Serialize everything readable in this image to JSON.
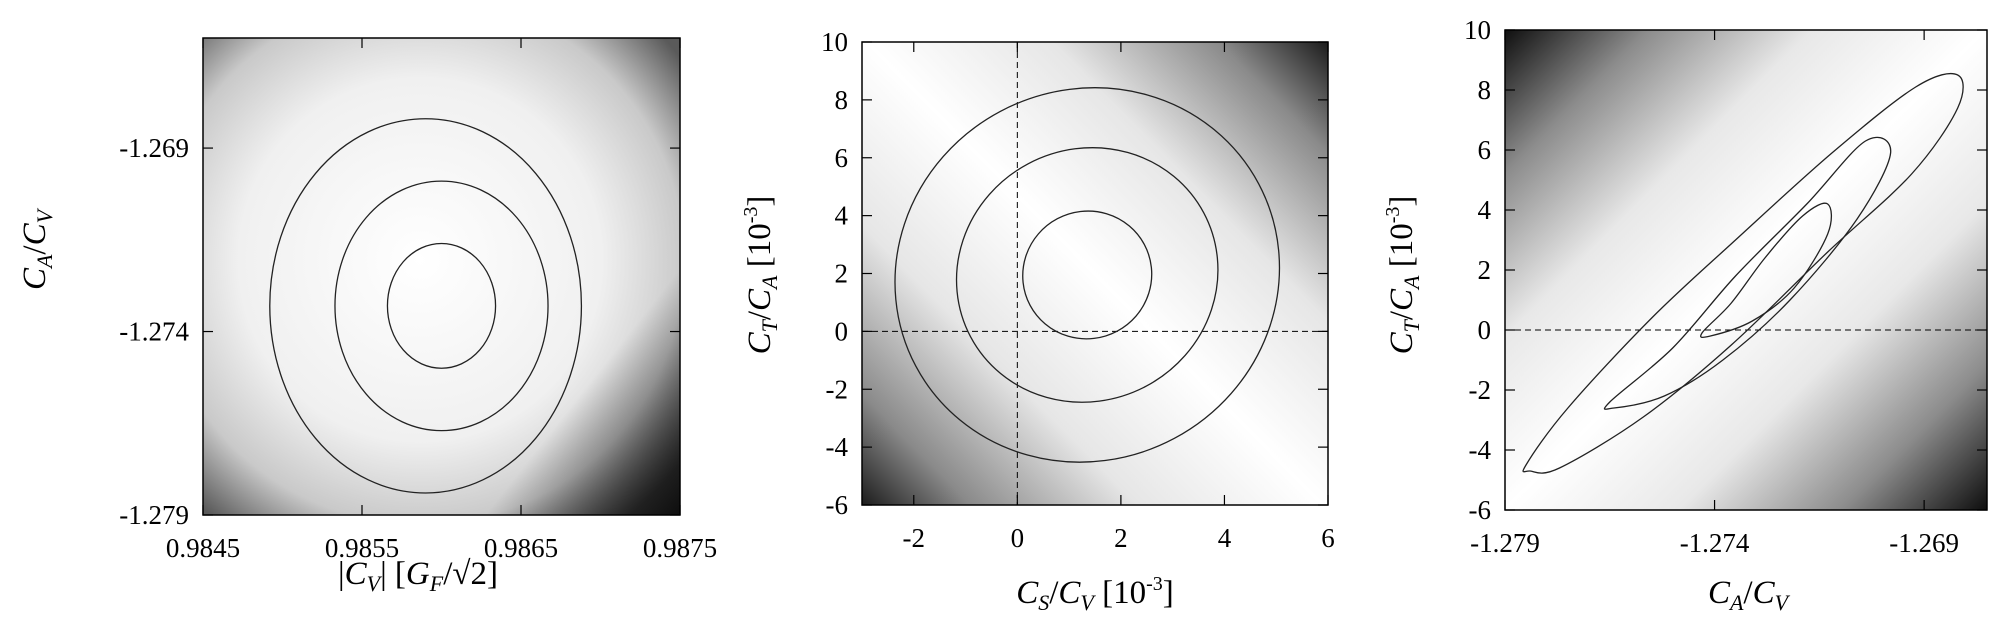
{
  "chart_data": [
    {
      "type": "contour",
      "xlabel": "|C_V|  [G_F/√2]",
      "ylabel": "C_A/C_V",
      "xlim": [
        0.9845,
        0.9875
      ],
      "ylim": [
        -1.279,
        -1.266
      ],
      "x_ticks": [
        "0.9845",
        "0.9855",
        "0.9865",
        "0.9875"
      ],
      "x_tick_values": [
        0.9845,
        0.9855,
        0.9865,
        0.9875
      ],
      "y_ticks": [
        "-1.269",
        "-1.274",
        "-1.279"
      ],
      "y_tick_values": [
        -1.269,
        -1.274,
        -1.279
      ],
      "background": "grayscale chi-square density, white near minimum, dark toward corners",
      "contours": [
        {
          "level": 1,
          "cx": 0.986,
          "cy": -1.2733,
          "rx": 0.00034,
          "ry": 0.0017,
          "angle": 0
        },
        {
          "level": 2,
          "cx": 0.986,
          "cy": -1.2733,
          "rx": 0.00067,
          "ry": 0.0034,
          "angle": 0
        },
        {
          "level": 3,
          "cx": 0.9859,
          "cy": -1.2733,
          "rx": 0.00098,
          "ry": 0.0051,
          "angle": 0
        }
      ],
      "reference_lines": []
    },
    {
      "type": "contour",
      "xlabel": "C_S/C_V  [10^-3]",
      "ylabel": "C_T/C_A  [10^-3]",
      "xlim": [
        -3,
        6
      ],
      "ylim": [
        -6,
        10
      ],
      "x_ticks": [
        "-2",
        "0",
        "2",
        "4",
        "6"
      ],
      "x_tick_values": [
        -2,
        0,
        2,
        4,
        6
      ],
      "y_ticks": [
        "-6",
        "-4",
        "-2",
        "0",
        "2",
        "4",
        "6",
        "8",
        "10"
      ],
      "y_tick_values": [
        -6,
        -4,
        -2,
        0,
        2,
        4,
        6,
        8,
        10
      ],
      "background": "grayscale chi-square density, dark at bottom-left and top-right corners",
      "contours": [
        {
          "level": 1,
          "cx": 1.35,
          "cy": 1.95,
          "rx": 1.25,
          "ry": 2.2,
          "angle": -28
        },
        {
          "level": 2,
          "cx": 1.35,
          "cy": 1.95,
          "rx": 2.55,
          "ry": 4.35,
          "angle": -28
        },
        {
          "level": 3,
          "cx": 1.35,
          "cy": 1.95,
          "rx": 3.75,
          "ry": 6.4,
          "angle": -28
        }
      ],
      "reference_lines": [
        {
          "axis": "x",
          "value": 0
        },
        {
          "axis": "y",
          "value": 0
        }
      ]
    },
    {
      "type": "contour",
      "xlabel": "C_A/C_V",
      "ylabel": "C_T/C_A  [10^-3]",
      "xlim": [
        -1.279,
        -1.2675
      ],
      "ylim": [
        -6,
        10
      ],
      "x_ticks": [
        "-1.279",
        "-1.274",
        "-1.269"
      ],
      "x_tick_values": [
        -1.279,
        -1.274,
        -1.269
      ],
      "y_ticks": [
        "-6",
        "-4",
        "-2",
        "0",
        "2",
        "4",
        "6",
        "8",
        "10"
      ],
      "y_tick_values": [
        -6,
        -4,
        -2,
        0,
        2,
        4,
        6,
        8,
        10
      ],
      "background": "grayscale chi-square density, dark at top-left and bottom-right corners",
      "contours": [
        {
          "level": 1,
          "points": [
            [
              -1.2743,
              -0.1
            ],
            [
              -1.2736,
              0.9
            ],
            [
              -1.2728,
              2.4
            ],
            [
              -1.2719,
              3.8
            ],
            [
              -1.2713,
              4.2
            ],
            [
              -1.2713,
              3.2
            ],
            [
              -1.2721,
              1.4
            ],
            [
              -1.2731,
              0.3
            ],
            [
              -1.2741,
              -0.2
            ]
          ]
        },
        {
          "level": 2,
          "points": [
            [
              -1.2765,
              -2.4
            ],
            [
              -1.275,
              -0.6
            ],
            [
              -1.2735,
              1.8
            ],
            [
              -1.2718,
              4.2
            ],
            [
              -1.2704,
              6.3
            ],
            [
              -1.2698,
              5.9
            ],
            [
              -1.2706,
              3.7
            ],
            [
              -1.2722,
              1.0
            ],
            [
              -1.2738,
              -1.0
            ],
            [
              -1.2752,
              -2.2
            ],
            [
              -1.2764,
              -2.6
            ]
          ]
        },
        {
          "level": 3,
          "points": [
            [
              -1.2785,
              -4.5
            ],
            [
              -1.2775,
              -2.6
            ],
            [
              -1.2755,
              0.4
            ],
            [
              -1.2735,
              3.0
            ],
            [
              -1.2712,
              5.9
            ],
            [
              -1.2692,
              8.1
            ],
            [
              -1.2682,
              8.5
            ],
            [
              -1.2682,
              7.4
            ],
            [
              -1.2693,
              5.2
            ],
            [
              -1.2713,
              2.6
            ],
            [
              -1.2736,
              -0.5
            ],
            [
              -1.2757,
              -2.9
            ],
            [
              -1.2777,
              -4.6
            ],
            [
              -1.2784,
              -4.7
            ]
          ]
        }
      ],
      "reference_lines": [
        {
          "axis": "y",
          "value": 0
        }
      ]
    }
  ]
}
